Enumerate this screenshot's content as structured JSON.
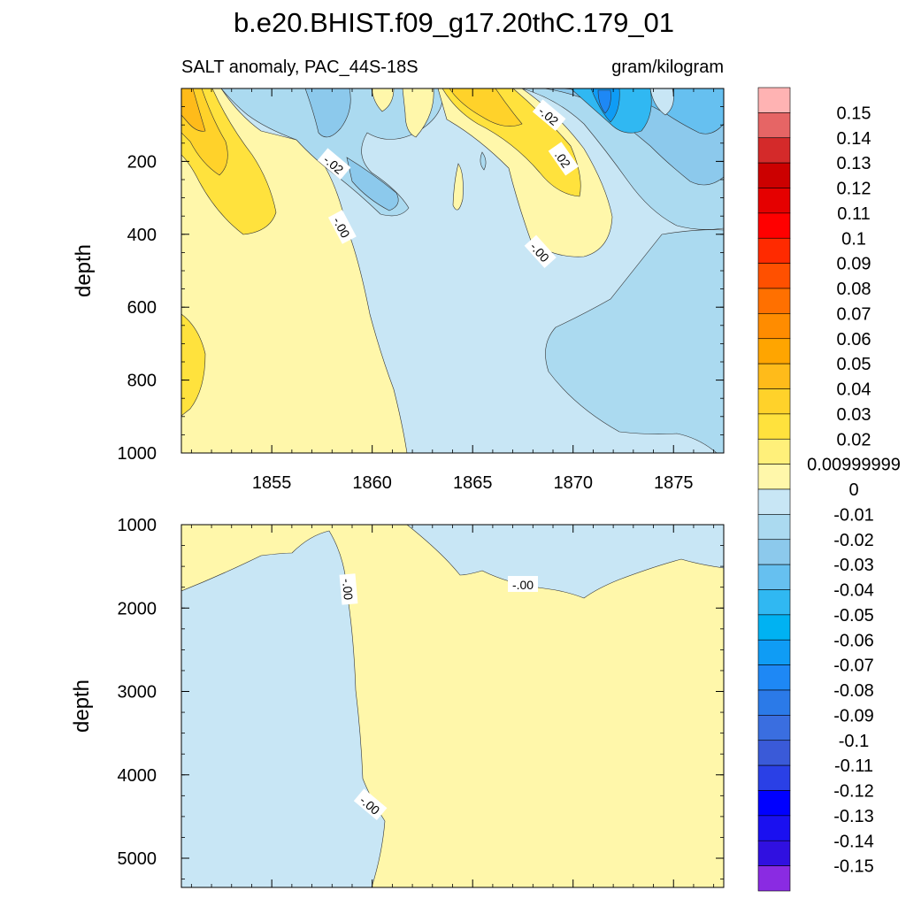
{
  "chart_data": {
    "type": "heatmap",
    "title": "b.e20.BHIST.f09_g17.20thC.179_01",
    "subtitle_left": "SALT anomaly, PAC_44S-18S",
    "subtitle_right": "gram/kilogram",
    "ylabel": "depth",
    "x_range": [
      1850.5,
      1877.5
    ],
    "x_ticks": [
      "1855",
      "1860",
      "1865",
      "1870",
      "1875"
    ],
    "upper_panel": {
      "ylim": [
        0,
        1000
      ],
      "y_ticks": [
        "200",
        "400",
        "600",
        "800",
        "1000"
      ],
      "contour_labels": [
        "-.02",
        "-.00",
        "-.02",
        "-.00",
        ".02"
      ]
    },
    "lower_panel": {
      "ylim": [
        1000,
        5350
      ],
      "y_ticks": [
        "1000",
        "2000",
        "3000",
        "4000",
        "5000"
      ],
      "contour_labels": [
        "-.00",
        "-.00",
        "-.00"
      ]
    },
    "colorbar": {
      "labels": [
        "0.15",
        "0.14",
        "0.13",
        "0.12",
        "0.11",
        "0.1",
        "0.09",
        "0.08",
        "0.07",
        "0.06",
        "0.05",
        "0.04",
        "0.03",
        "0.02",
        "0.00999999",
        "0",
        "-0.01",
        "-0.02",
        "-0.03",
        "-0.04",
        "-0.05",
        "-0.06",
        "-0.07",
        "-0.08",
        "-0.09",
        "-0.1",
        "-0.11",
        "-0.12",
        "-0.13",
        "-0.14",
        "-0.15"
      ],
      "colors": [
        "#ffb3b3",
        "#e66565",
        "#d42a2a",
        "#cc0000",
        "#e50000",
        "#ff0000",
        "#ff2a00",
        "#ff5000",
        "#ff7000",
        "#ff8c00",
        "#ffa500",
        "#ffbb1a",
        "#ffd22a",
        "#ffe23d",
        "#fff07a",
        "#fff7aa",
        "#c8e6f5",
        "#abdaf0",
        "#8cc9ec",
        "#66c0f0",
        "#30b8f2",
        "#00b2f2",
        "#0f9cf5",
        "#1e88f5",
        "#2b7ae8",
        "#3a6ee0",
        "#3a5ad8",
        "#2a40e6",
        "#0000ff",
        "#1a10f0",
        "#3010e0",
        "#8a2be2"
      ]
    }
  }
}
